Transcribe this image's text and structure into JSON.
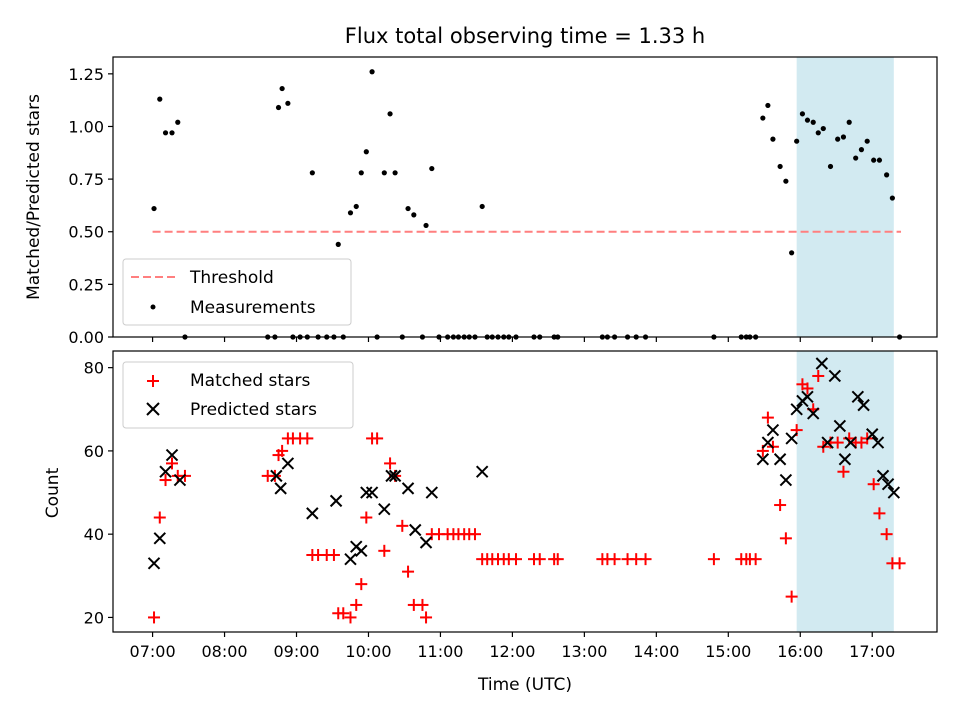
{
  "figure": {
    "title": "Flux total observing time = 1.33 h"
  },
  "colors": {
    "measurement": "#000000",
    "matched": "#ff0000",
    "predicted": "#000000",
    "threshold": "#ff7f7f",
    "span": "#add8e6"
  },
  "chart_data": [
    {
      "id": "ratio",
      "type": "scatter",
      "title": "Flux total observing time = 1.33 h",
      "xlabel": "",
      "ylabel": "Matched/Predicted stars",
      "xlim": [
        6.45,
        17.9
      ],
      "ylim": [
        0,
        1.33
      ],
      "yticks": [
        0,
        0.25,
        0.5,
        0.75,
        1.0,
        1.25
      ],
      "ytick_labels": [
        "0.00",
        "0.25",
        "0.50",
        "0.75",
        "1.00",
        "1.25"
      ],
      "xticks": [
        7,
        8,
        9,
        10,
        11,
        12,
        13,
        14,
        15,
        16,
        17
      ],
      "legend": {
        "position": "lower left",
        "entries": [
          "Threshold",
          "Measurements"
        ]
      },
      "highlight_span": {
        "x": [
          15.95,
          17.3
        ]
      },
      "threshold": {
        "name": "Threshold",
        "x": [
          7.0,
          17.4
        ],
        "y": 0.5,
        "style": "dashed"
      },
      "series": [
        {
          "name": "Measurements",
          "marker": "dot",
          "points": [
            [
              7.02,
              0.61
            ],
            [
              7.1,
              1.13
            ],
            [
              7.18,
              0.97
            ],
            [
              7.27,
              0.97
            ],
            [
              7.35,
              1.02
            ],
            [
              7.45,
              0.0
            ],
            [
              8.6,
              0.0
            ],
            [
              8.7,
              0.0
            ],
            [
              8.75,
              1.09
            ],
            [
              8.8,
              1.18
            ],
            [
              8.88,
              1.11
            ],
            [
              8.95,
              0.0
            ],
            [
              9.05,
              0.0
            ],
            [
              9.15,
              0.0
            ],
            [
              9.22,
              0.78
            ],
            [
              9.3,
              0.0
            ],
            [
              9.42,
              0.0
            ],
            [
              9.52,
              0.0
            ],
            [
              9.58,
              0.44
            ],
            [
              9.65,
              0.0
            ],
            [
              9.75,
              0.59
            ],
            [
              9.83,
              0.62
            ],
            [
              9.9,
              0.78
            ],
            [
              9.97,
              0.88
            ],
            [
              10.05,
              1.26
            ],
            [
              10.12,
              0.0
            ],
            [
              10.22,
              0.78
            ],
            [
              10.3,
              1.06
            ],
            [
              10.37,
              0.78
            ],
            [
              10.47,
              0.0
            ],
            [
              10.55,
              0.61
            ],
            [
              10.63,
              0.58
            ],
            [
              10.75,
              0.0
            ],
            [
              10.8,
              0.53
            ],
            [
              10.88,
              0.8
            ],
            [
              10.98,
              0.0
            ],
            [
              11.1,
              0.0
            ],
            [
              11.18,
              0.0
            ],
            [
              11.25,
              0.0
            ],
            [
              11.33,
              0.0
            ],
            [
              11.4,
              0.0
            ],
            [
              11.48,
              0.0
            ],
            [
              11.58,
              0.62
            ],
            [
              11.65,
              0.0
            ],
            [
              11.72,
              0.0
            ],
            [
              11.8,
              0.0
            ],
            [
              11.88,
              0.0
            ],
            [
              11.95,
              0.0
            ],
            [
              12.05,
              0.0
            ],
            [
              12.3,
              0.0
            ],
            [
              12.38,
              0.0
            ],
            [
              12.58,
              0.0
            ],
            [
              12.63,
              0.0
            ],
            [
              13.25,
              0.0
            ],
            [
              13.32,
              0.0
            ],
            [
              13.42,
              0.0
            ],
            [
              13.6,
              0.0
            ],
            [
              13.72,
              0.0
            ],
            [
              13.85,
              0.0
            ],
            [
              14.8,
              0.0
            ],
            [
              15.18,
              0.0
            ],
            [
              15.25,
              0.0
            ],
            [
              15.3,
              0.0
            ],
            [
              15.38,
              0.0
            ],
            [
              15.48,
              1.04
            ],
            [
              15.55,
              1.1
            ],
            [
              15.62,
              0.94
            ],
            [
              15.72,
              0.81
            ],
            [
              15.8,
              0.74
            ],
            [
              15.88,
              0.4
            ],
            [
              15.95,
              0.93
            ],
            [
              16.03,
              1.06
            ],
            [
              16.1,
              1.03
            ],
            [
              16.18,
              1.02
            ],
            [
              16.25,
              0.97
            ],
            [
              16.32,
              0.99
            ],
            [
              16.42,
              0.81
            ],
            [
              16.52,
              0.94
            ],
            [
              16.6,
              0.95
            ],
            [
              16.68,
              1.02
            ],
            [
              16.77,
              0.85
            ],
            [
              16.85,
              0.89
            ],
            [
              16.93,
              0.93
            ],
            [
              17.02,
              0.84
            ],
            [
              17.1,
              0.84
            ],
            [
              17.2,
              0.77
            ],
            [
              17.28,
              0.66
            ],
            [
              17.38,
              0.0
            ]
          ]
        }
      ]
    },
    {
      "id": "counts",
      "type": "scatter",
      "title": "",
      "xlabel": "Time (UTC)",
      "ylabel": "Count",
      "xlim": [
        6.45,
        17.9
      ],
      "ylim": [
        16.5,
        84
      ],
      "yticks": [
        20,
        40,
        60,
        80
      ],
      "ytick_labels": [
        "20",
        "40",
        "60",
        "80"
      ],
      "xticks": [
        7,
        8,
        9,
        10,
        11,
        12,
        13,
        14,
        15,
        16,
        17
      ],
      "xtick_labels": [
        "07:00",
        "08:00",
        "09:00",
        "10:00",
        "11:00",
        "12:00",
        "13:00",
        "14:00",
        "15:00",
        "16:00",
        "17:00"
      ],
      "legend": {
        "position": "upper left",
        "entries": [
          "Matched stars",
          "Predicted stars"
        ]
      },
      "highlight_span": {
        "x": [
          15.95,
          17.3
        ]
      },
      "series": [
        {
          "name": "Matched stars",
          "marker": "plus",
          "points": [
            [
              7.02,
              20
            ],
            [
              7.1,
              44
            ],
            [
              7.18,
              53
            ],
            [
              7.27,
              57
            ],
            [
              7.35,
              54
            ],
            [
              7.45,
              54
            ],
            [
              8.6,
              54
            ],
            [
              8.7,
              54
            ],
            [
              8.75,
              59
            ],
            [
              8.8,
              60
            ],
            [
              8.88,
              63
            ],
            [
              8.95,
              63
            ],
            [
              9.05,
              63
            ],
            [
              9.15,
              63
            ],
            [
              9.22,
              35
            ],
            [
              9.3,
              35
            ],
            [
              9.42,
              35
            ],
            [
              9.52,
              35
            ],
            [
              9.58,
              21
            ],
            [
              9.65,
              21
            ],
            [
              9.75,
              20
            ],
            [
              9.83,
              23
            ],
            [
              9.9,
              28
            ],
            [
              9.97,
              44
            ],
            [
              10.05,
              63
            ],
            [
              10.12,
              63
            ],
            [
              10.22,
              36
            ],
            [
              10.3,
              57
            ],
            [
              10.37,
              54
            ],
            [
              10.47,
              42
            ],
            [
              10.55,
              31
            ],
            [
              10.63,
              23
            ],
            [
              10.75,
              23
            ],
            [
              10.8,
              20
            ],
            [
              10.88,
              40
            ],
            [
              10.98,
              40
            ],
            [
              11.1,
              40
            ],
            [
              11.18,
              40
            ],
            [
              11.25,
              40
            ],
            [
              11.33,
              40
            ],
            [
              11.4,
              40
            ],
            [
              11.48,
              40
            ],
            [
              11.58,
              34
            ],
            [
              11.65,
              34
            ],
            [
              11.72,
              34
            ],
            [
              11.8,
              34
            ],
            [
              11.88,
              34
            ],
            [
              11.95,
              34
            ],
            [
              12.05,
              34
            ],
            [
              12.3,
              34
            ],
            [
              12.38,
              34
            ],
            [
              12.58,
              34
            ],
            [
              12.63,
              34
            ],
            [
              13.25,
              34
            ],
            [
              13.32,
              34
            ],
            [
              13.42,
              34
            ],
            [
              13.6,
              34
            ],
            [
              13.72,
              34
            ],
            [
              13.85,
              34
            ],
            [
              14.8,
              34
            ],
            [
              15.18,
              34
            ],
            [
              15.25,
              34
            ],
            [
              15.3,
              34
            ],
            [
              15.38,
              34
            ],
            [
              15.48,
              60
            ],
            [
              15.55,
              68
            ],
            [
              15.62,
              61
            ],
            [
              15.72,
              47
            ],
            [
              15.8,
              39
            ],
            [
              15.88,
              25
            ],
            [
              15.95,
              65
            ],
            [
              16.03,
              76
            ],
            [
              16.1,
              75
            ],
            [
              16.18,
              70
            ],
            [
              16.25,
              78
            ],
            [
              16.32,
              61
            ],
            [
              16.42,
              62
            ],
            [
              16.52,
              62
            ],
            [
              16.6,
              55
            ],
            [
              16.68,
              63
            ],
            [
              16.77,
              62
            ],
            [
              16.85,
              62
            ],
            [
              16.93,
              63
            ],
            [
              17.02,
              52
            ],
            [
              17.1,
              45
            ],
            [
              17.2,
              40
            ],
            [
              17.28,
              33
            ],
            [
              17.38,
              33
            ]
          ]
        },
        {
          "name": "Predicted stars",
          "marker": "x",
          "points": [
            [
              7.02,
              33
            ],
            [
              7.1,
              39
            ],
            [
              7.18,
              55
            ],
            [
              7.27,
              59
            ],
            [
              7.38,
              53
            ],
            [
              8.72,
              54
            ],
            [
              8.78,
              51
            ],
            [
              8.88,
              57
            ],
            [
              9.22,
              45
            ],
            [
              9.55,
              48
            ],
            [
              9.75,
              34
            ],
            [
              9.83,
              37
            ],
            [
              9.9,
              36
            ],
            [
              9.97,
              50
            ],
            [
              10.05,
              50
            ],
            [
              10.22,
              46
            ],
            [
              10.32,
              54
            ],
            [
              10.37,
              54
            ],
            [
              10.55,
              51
            ],
            [
              10.65,
              41
            ],
            [
              10.8,
              38
            ],
            [
              10.88,
              50
            ],
            [
              11.58,
              55
            ],
            [
              15.48,
              58
            ],
            [
              15.55,
              62
            ],
            [
              15.62,
              65
            ],
            [
              15.72,
              58
            ],
            [
              15.8,
              53
            ],
            [
              15.88,
              63
            ],
            [
              15.95,
              70
            ],
            [
              16.03,
              72
            ],
            [
              16.1,
              73
            ],
            [
              16.18,
              69
            ],
            [
              16.3,
              81
            ],
            [
              16.38,
              62
            ],
            [
              16.48,
              78
            ],
            [
              16.55,
              66
            ],
            [
              16.62,
              58
            ],
            [
              16.7,
              62
            ],
            [
              16.8,
              73
            ],
            [
              16.88,
              71
            ],
            [
              17.0,
              64
            ],
            [
              17.08,
              62
            ],
            [
              17.15,
              54
            ],
            [
              17.22,
              52
            ],
            [
              17.3,
              50
            ]
          ]
        }
      ]
    }
  ]
}
